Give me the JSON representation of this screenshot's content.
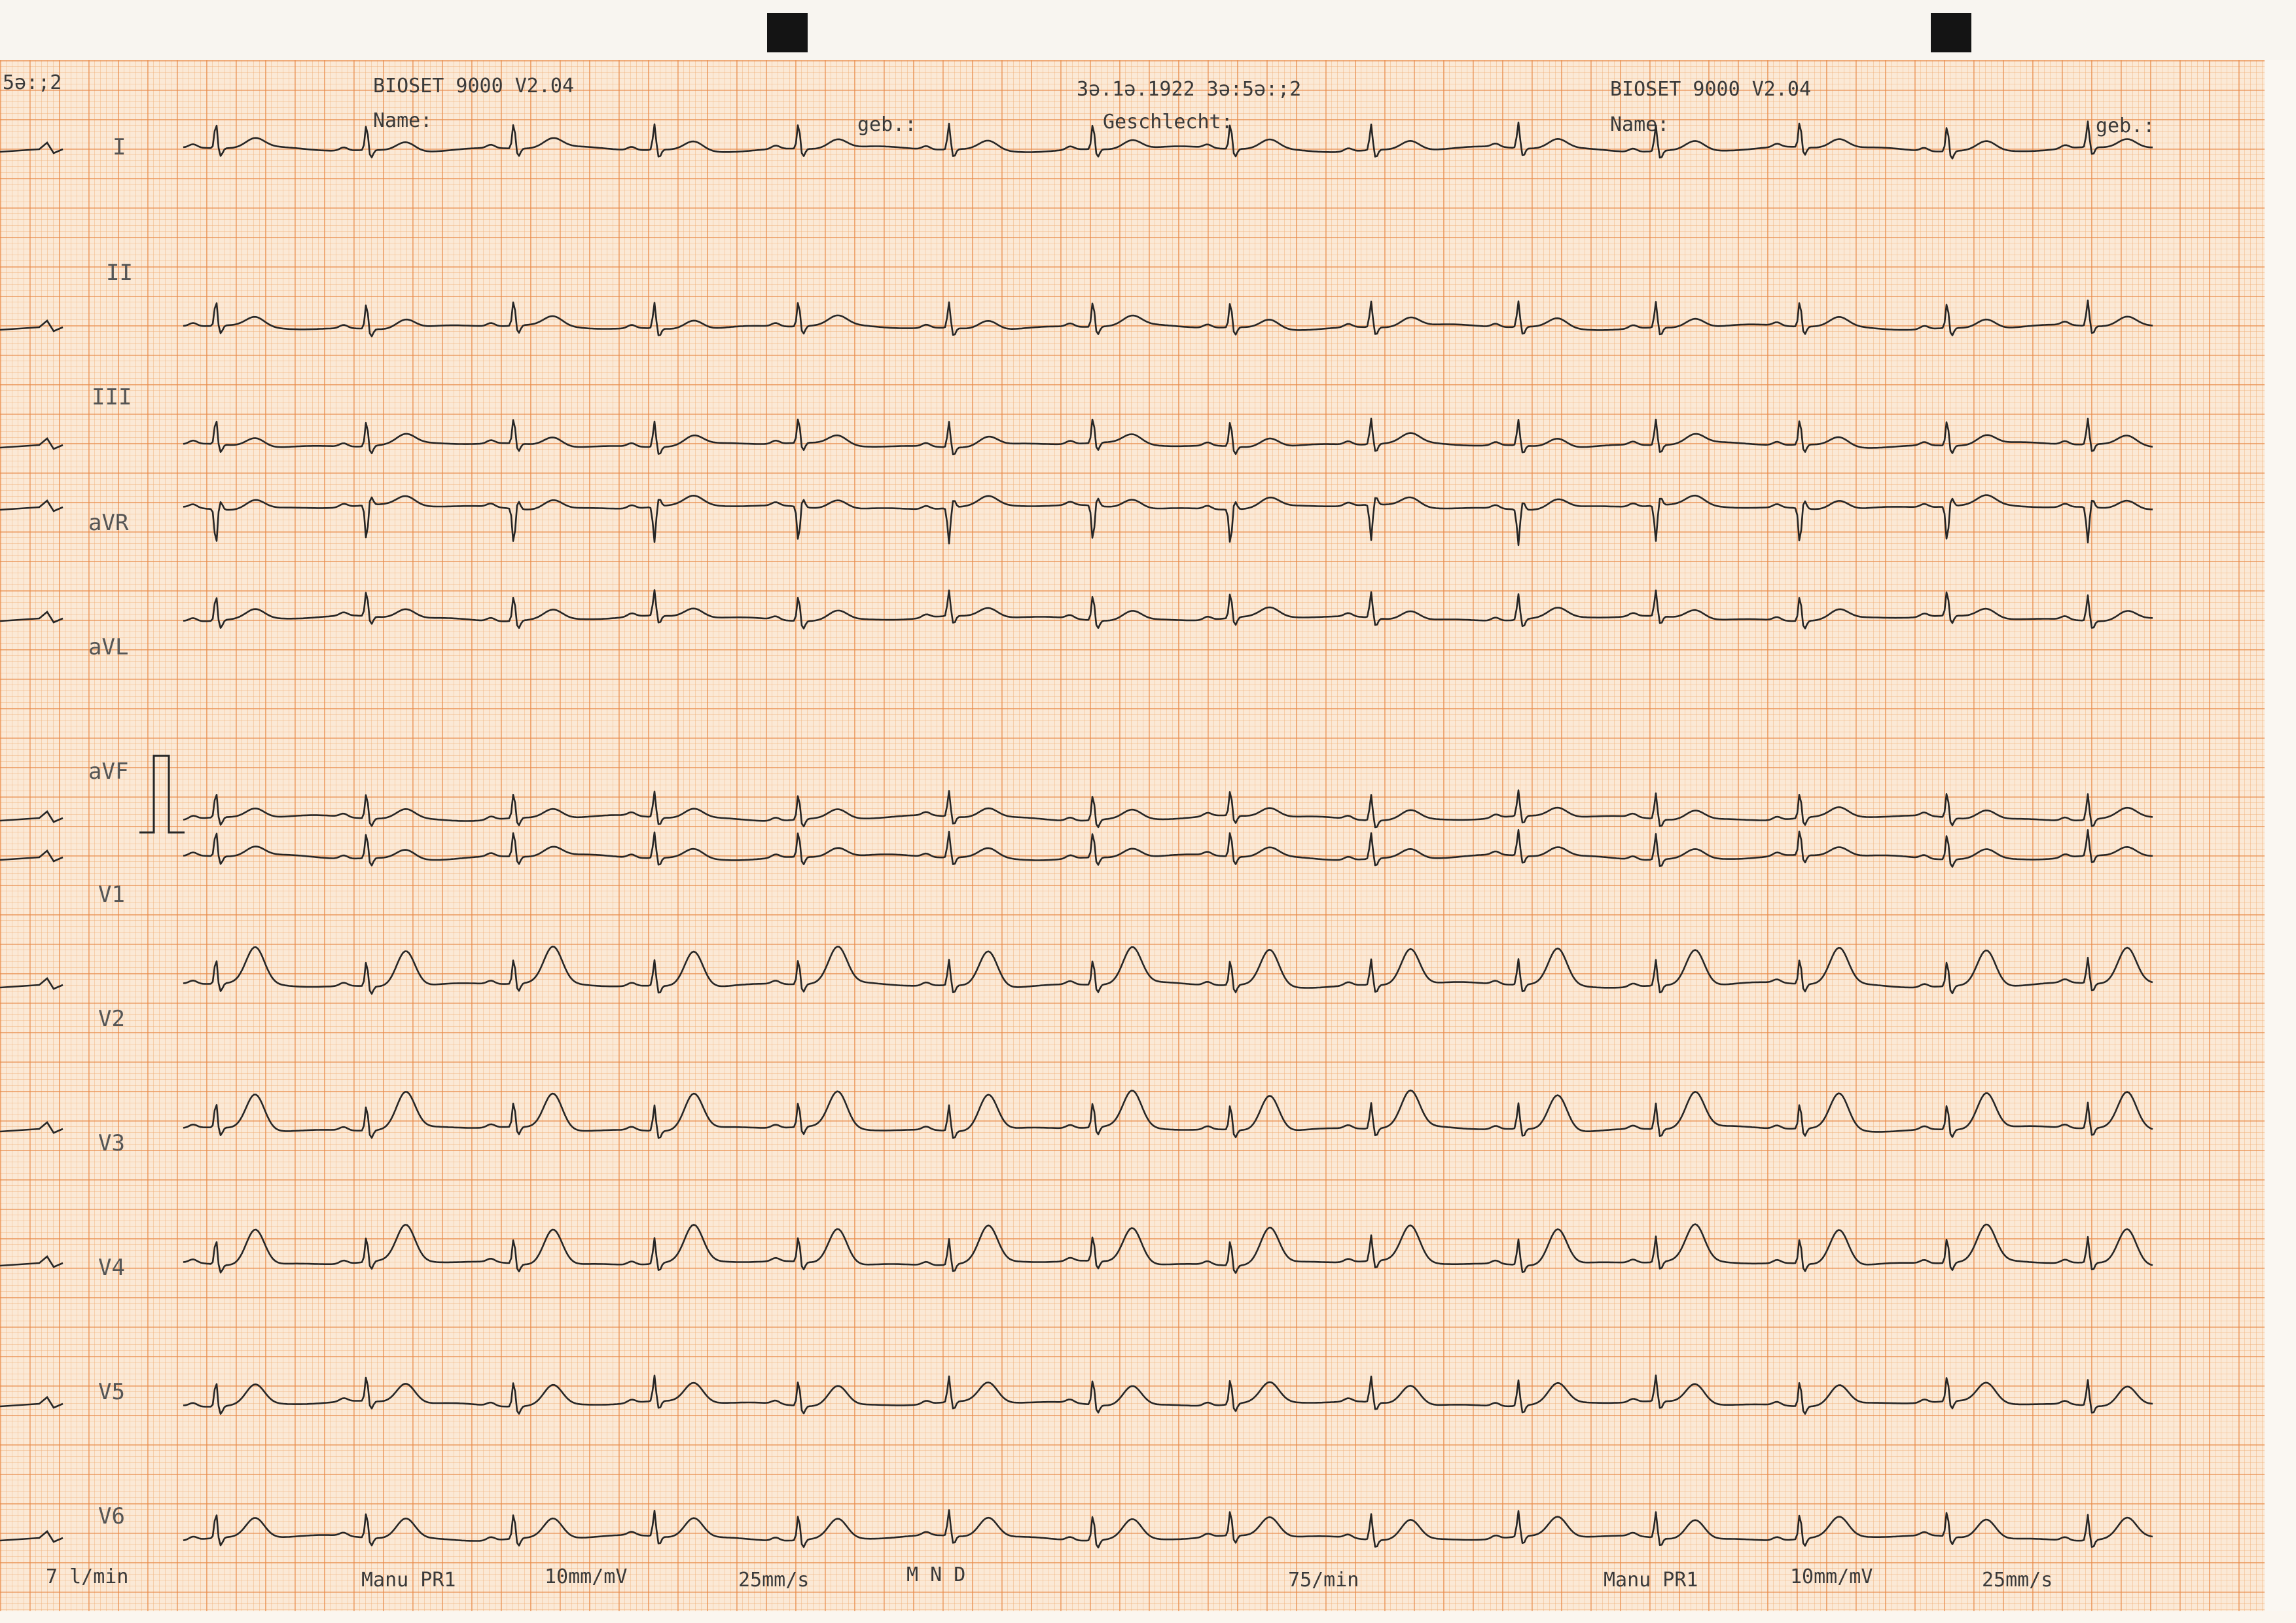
{
  "header": {
    "left_fragment": "5ə:;2",
    "device_1": "BIOSET 9000 V2.04",
    "name_label_1": "Name:",
    "geb_label_1": "geb.:",
    "date_time": "3ə.1ə.1922 3ə:5ə:;2",
    "sex_label": "Geschlecht:",
    "device_2": "BIOSET 9000 V2.04",
    "name_label_2": "Name:",
    "geb_label_2": "geb.:"
  },
  "leads": [
    "I",
    "II",
    "III",
    "aVR",
    "aVL",
    "aVF",
    "V1",
    "V2",
    "V3",
    "V4",
    "V5",
    "V6"
  ],
  "footer": {
    "rate_fragment": "7 l/min",
    "mode_1": "Manu PR1",
    "gain_1": "10mm/mV",
    "speed_1": "25mm/s",
    "mnd": "M  N  D",
    "heart_rate": "75/min",
    "mode_2": "Manu PR1",
    "gain_2": "10mm/mV",
    "speed_2": "25mm/s"
  },
  "colors": {
    "paper": "#fbe9d6",
    "grid_major": "#e88846",
    "grid_minor": "#f0af78",
    "trace": "#262626"
  }
}
